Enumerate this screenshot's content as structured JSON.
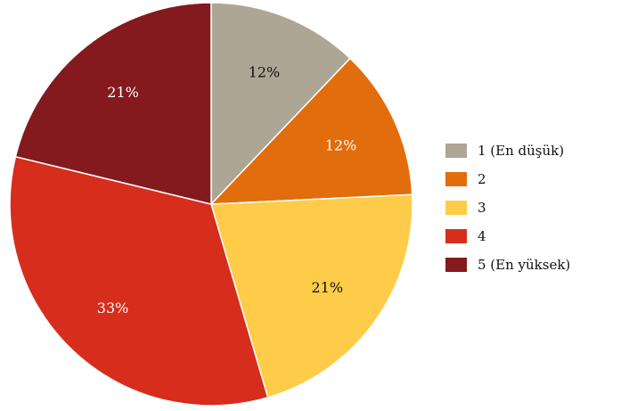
{
  "chart_data": {
    "type": "pie",
    "categories": [
      "1 (En düşük)",
      "2",
      "3",
      "4",
      "5 (En yüksek)"
    ],
    "values": [
      12,
      12,
      21,
      33,
      21
    ],
    "labels": [
      "12%",
      "12%",
      "21%",
      "33%",
      "21%"
    ],
    "colors": [
      "#ADA694",
      "#E26D0C",
      "#FECC48",
      "#D62D1D",
      "#841A1E"
    ],
    "label_colors": [
      "#111111",
      "#ffffff",
      "#111111",
      "#ffffff",
      "#ffffff"
    ],
    "legend_position": "right"
  }
}
